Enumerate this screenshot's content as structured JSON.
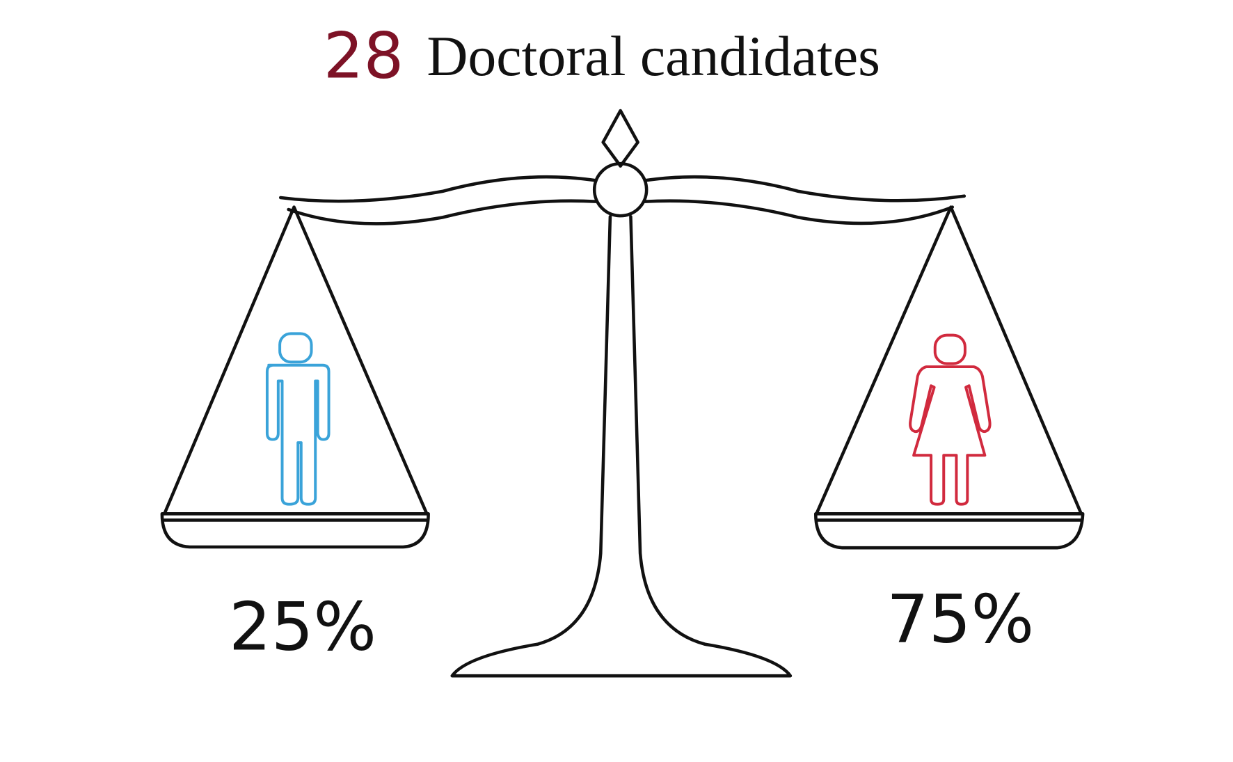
{
  "header": {
    "count": "28",
    "title": "Doctoral candidates"
  },
  "groups": [
    {
      "label": "25%"
    },
    {
      "label": "75%"
    }
  ]
}
